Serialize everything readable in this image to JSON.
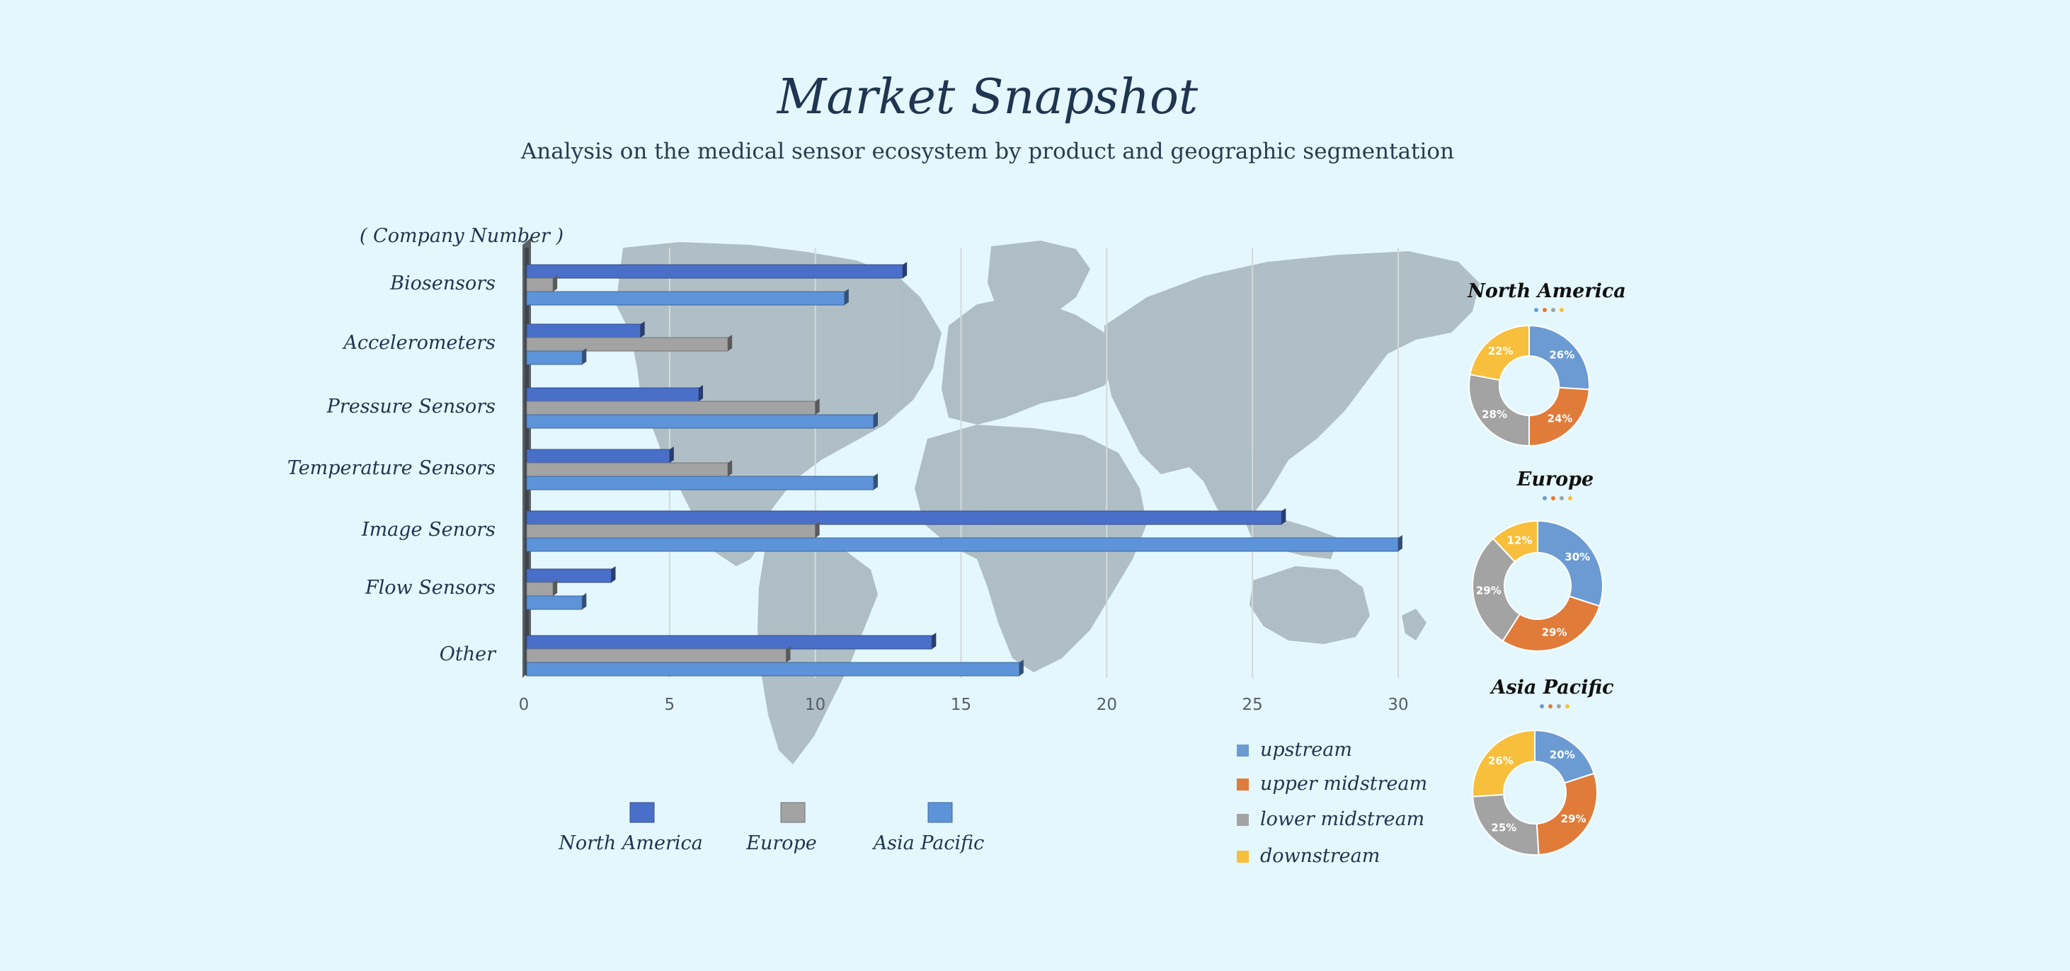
{
  "header": {
    "title": "Market Snapshot",
    "subtitle": "Analysis on the medical sensor ecosystem by product and geographic segmentation"
  },
  "colors": {
    "background": "#e4f7fc",
    "map": "#adbcc2",
    "north_america_bar": "#4a6fc9",
    "europe_bar": "#a3a3a3",
    "asia_pacific_bar": "#5d93d8",
    "upstream": "#6b9bd2",
    "upper_midstream": "#e07b3a",
    "lower_midstream": "#a3a3a3",
    "downstream": "#f7bf3c"
  },
  "chart_data": [
    {
      "type": "bar",
      "orientation": "horizontal",
      "ylabel": "( Company Number )",
      "categories": [
        "Biosensors",
        "Accelerometers",
        "Pressure Sensors",
        "Temperature Sensors",
        "Image Senors",
        "Flow Sensors",
        "Other"
      ],
      "series": [
        {
          "name": "North America",
          "values": [
            13,
            4,
            6,
            5,
            26,
            3,
            14
          ]
        },
        {
          "name": "Europe",
          "values": [
            1,
            7,
            10,
            7,
            10,
            1,
            9
          ]
        },
        {
          "name": "Asia Pacific",
          "values": [
            11,
            2,
            12,
            12,
            30,
            2,
            17
          ]
        }
      ],
      "xlim": [
        0,
        30
      ],
      "xticks": [
        0,
        5,
        10,
        15,
        20,
        25,
        30
      ],
      "grid": "vertical",
      "legend": "bottom"
    },
    {
      "type": "pie",
      "variant": "donut",
      "title": "North America",
      "labels": [
        "upstream",
        "upper midstream",
        "lower midstream",
        "downstream"
      ],
      "values": [
        26,
        24,
        28,
        22
      ]
    },
    {
      "type": "pie",
      "variant": "donut",
      "title": "Europe",
      "labels": [
        "upstream",
        "upper midstream",
        "lower midstream",
        "downstream"
      ],
      "values": [
        30,
        29,
        29,
        12
      ]
    },
    {
      "type": "pie",
      "variant": "donut",
      "title": "Asia Pacific",
      "labels": [
        "upstream",
        "upper midstream",
        "lower midstream",
        "downstream"
      ],
      "values": [
        20,
        29,
        25,
        26
      ]
    }
  ],
  "pie_legend": {
    "items": [
      "upstream",
      "upper midstream",
      "lower midstream",
      "downstream"
    ]
  }
}
